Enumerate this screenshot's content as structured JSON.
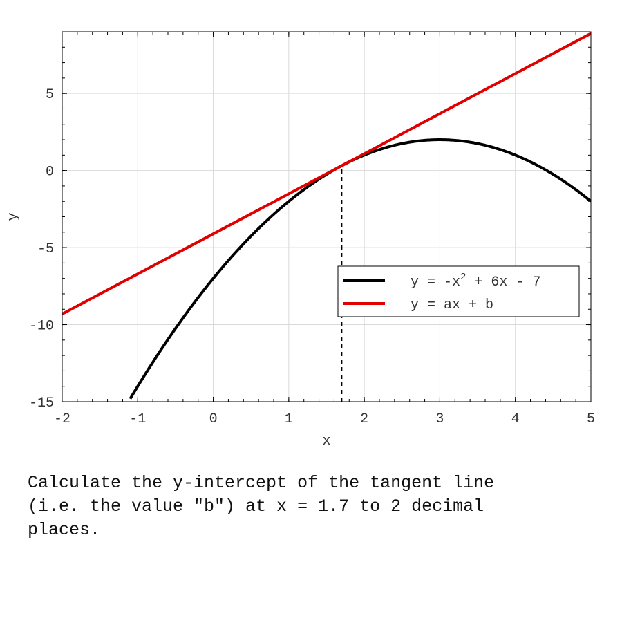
{
  "chart_data": {
    "type": "line",
    "xlabel": "x",
    "ylabel": "y",
    "xlim": [
      -2,
      5
    ],
    "ylim": [
      -15,
      9
    ],
    "xticks": [
      "-2",
      "-1",
      "0",
      "1",
      "2",
      "3",
      "4",
      "5"
    ],
    "yticks": [
      "-15",
      "-10",
      "-5",
      "0",
      "5"
    ],
    "grid": true,
    "legend_position": "lower-right",
    "tangent_point_x": 1.7,
    "series": [
      {
        "name_parts": [
          "y = -x",
          "2",
          " + 6x - 7"
        ],
        "function": "-x^2 + 6x - 7",
        "color": "#000000",
        "x": [
          -1.1,
          -1,
          -0.5,
          0,
          0.5,
          1,
          1.5,
          1.7,
          2,
          2.5,
          3,
          3.5,
          4,
          4.5,
          5
        ],
        "y": [
          -14.81,
          -14,
          -10.25,
          -7,
          -4.25,
          -2,
          -0.25,
          0.31,
          1,
          1.75,
          2,
          1.75,
          1,
          -0.25,
          -2
        ]
      },
      {
        "name": "y = ax + b",
        "color": "#e00000",
        "x": [
          -2,
          5
        ],
        "y": [
          -9.31,
          8.89
        ]
      }
    ]
  },
  "question": "Calculate the y-intercept of the tangent line\n(i.e. the value \"b\") at x = 1.7 to 2 decimal\nplaces."
}
